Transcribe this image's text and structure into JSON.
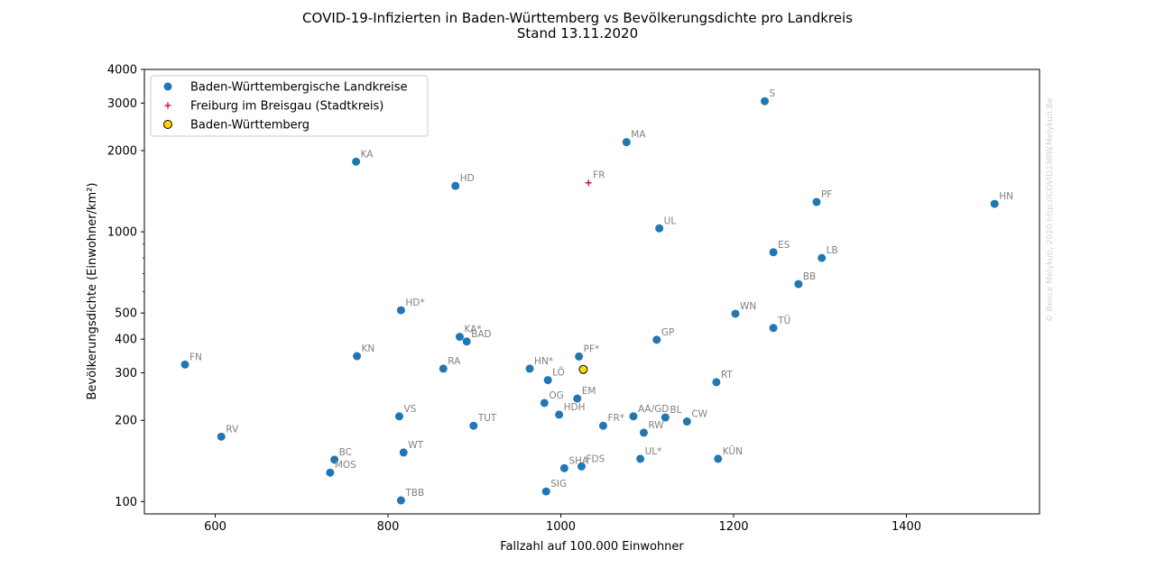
{
  "chart_data": {
    "type": "scatter",
    "title": "COVID-19-Infizierten in Baden-Württemberg vs Bevölkerungsdichte pro Landkreis",
    "subtitle": "Stand 13.11.2020",
    "xlabel": "Fallzahl auf 100.000 Einwohner",
    "ylabel": "Bevölkerungsdichte (Einwohner/km²)",
    "xlim": [
      518,
      1554
    ],
    "ylim": [
      90,
      4000
    ],
    "yscale": "log",
    "xticks": [
      600,
      800,
      1000,
      1200,
      1400
    ],
    "yticks": [
      100,
      200,
      300,
      400,
      500,
      1000,
      2000,
      3000,
      4000
    ],
    "grid": false,
    "legend_position": "top-left",
    "watermark": "© Bence Melykuti, 2020 http://COVID19BW.Melykuti.Be",
    "colors": {
      "landkreise": "#1f77b4",
      "freiburg": "#dc143c",
      "bw": "#ffd700",
      "label": "#808080"
    },
    "series": [
      {
        "name": "Baden-Württembergische Landkreise",
        "marker": "circle",
        "color": "#1f77b4",
        "points": [
          {
            "label": "S",
            "x": 1236,
            "y": 3050
          },
          {
            "label": "MA",
            "x": 1076,
            "y": 2150
          },
          {
            "label": "KA",
            "x": 763,
            "y": 1820
          },
          {
            "label": "HD",
            "x": 878,
            "y": 1480
          },
          {
            "label": "PF",
            "x": 1296,
            "y": 1290
          },
          {
            "label": "HN",
            "x": 1502,
            "y": 1270
          },
          {
            "label": "UL",
            "x": 1114,
            "y": 1030
          },
          {
            "label": "ES",
            "x": 1246,
            "y": 840
          },
          {
            "label": "LB",
            "x": 1302,
            "y": 800
          },
          {
            "label": "BB",
            "x": 1275,
            "y": 640
          },
          {
            "label": "HD*",
            "x": 815,
            "y": 512
          },
          {
            "label": "WN",
            "x": 1202,
            "y": 497
          },
          {
            "label": "TÜ",
            "x": 1246,
            "y": 440
          },
          {
            "label": "KA*",
            "x": 883,
            "y": 408
          },
          {
            "label": "BAD",
            "x": 891,
            "y": 392
          },
          {
            "label": "GP",
            "x": 1111,
            "y": 398
          },
          {
            "label": "FN",
            "x": 565,
            "y": 322
          },
          {
            "label": "KN",
            "x": 764,
            "y": 346
          },
          {
            "label": "PF*",
            "x": 1021,
            "y": 345
          },
          {
            "label": "RA",
            "x": 864,
            "y": 311
          },
          {
            "label": "HN*",
            "x": 964,
            "y": 311
          },
          {
            "label": "LÖ",
            "x": 985,
            "y": 282
          },
          {
            "label": "RT",
            "x": 1180,
            "y": 277
          },
          {
            "label": "OG",
            "x": 981,
            "y": 232
          },
          {
            "label": "EM",
            "x": 1019,
            "y": 241
          },
          {
            "label": "HDH",
            "x": 998,
            "y": 210
          },
          {
            "label": "VS",
            "x": 813,
            "y": 207
          },
          {
            "label": "AA/GD",
            "x": 1084,
            "y": 207
          },
          {
            "label": "BL",
            "x": 1121,
            "y": 205
          },
          {
            "label": "CW",
            "x": 1146,
            "y": 198
          },
          {
            "label": "FR*",
            "x": 1049,
            "y": 191
          },
          {
            "label": "TUT",
            "x": 899,
            "y": 191
          },
          {
            "label": "RW",
            "x": 1096,
            "y": 180
          },
          {
            "label": "RV",
            "x": 607,
            "y": 174
          },
          {
            "label": "WT",
            "x": 818,
            "y": 152
          },
          {
            "label": "UL*",
            "x": 1092,
            "y": 144
          },
          {
            "label": "KÜN",
            "x": 1182,
            "y": 144
          },
          {
            "label": "BC",
            "x": 738,
            "y": 143
          },
          {
            "label": "SHA",
            "x": 1004,
            "y": 133
          },
          {
            "label": "FDS",
            "x": 1024,
            "y": 135
          },
          {
            "label": "MOS",
            "x": 733,
            "y": 128
          },
          {
            "label": "SIG",
            "x": 983,
            "y": 109
          },
          {
            "label": "TBB",
            "x": 815,
            "y": 101
          }
        ]
      },
      {
        "name": "Freiburg im Breisgau (Stadtkreis)",
        "marker": "plus",
        "color": "#dc143c",
        "points": [
          {
            "label": "FR",
            "x": 1032,
            "y": 1520
          }
        ]
      },
      {
        "name": "Baden-Württemberg",
        "marker": "circle-edge",
        "color": "#ffd700",
        "points": [
          {
            "label": "",
            "x": 1026,
            "y": 309
          }
        ]
      }
    ]
  }
}
